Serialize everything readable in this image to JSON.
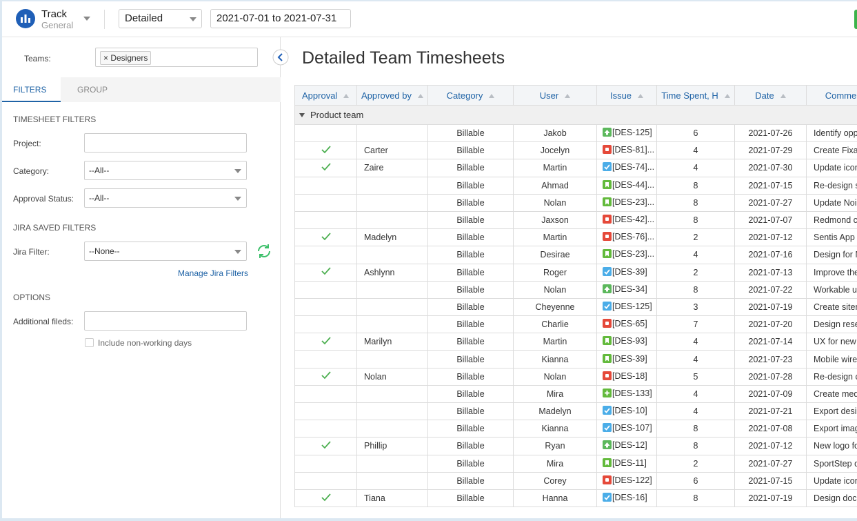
{
  "header": {
    "app_name": "Track",
    "app_sub": "General",
    "view": "Detailed",
    "date_range": "2021-07-01 to 2021-07-31"
  },
  "sidebar": {
    "teams_label": "Teams:",
    "team": "Designers",
    "tabs": [
      "FILTERS",
      "GROUP"
    ],
    "timesheet_title": "TIMESHEET FILTERS",
    "project_label": "Project:",
    "category_label": "Category:",
    "category_value": "--All--",
    "approval_label": "Approval Status:",
    "approval_value": "--All--",
    "jira_title": "JIRA SAVED FILTERS",
    "jira_label": "Jira Filter:",
    "jira_value": "--None--",
    "manage_link": "Manage Jira Filters",
    "options_title": "OPTIONS",
    "additional_label": "Additional fileds:",
    "include_label": "Include non-working days"
  },
  "table": {
    "title": "Detailed Team Timesheets",
    "columns": [
      "Approval",
      "Approved by",
      "Category",
      "User",
      "Issue",
      "Time Spent, H",
      "Date",
      "Comme"
    ],
    "group": "Product team",
    "rows": [
      {
        "approved": false,
        "category": "Billable",
        "user": "Jakob",
        "icon": "up",
        "issue": "[DES-125]",
        "time": 6,
        "date": "2021-07-26",
        "comment": "Identify opp"
      },
      {
        "approved": true,
        "approved_by": "Carter",
        "category": "Billable",
        "user": "Jocelyn",
        "icon": "bug",
        "issue": "[DES-81]...",
        "time": 4,
        "date": "2021-07-29",
        "comment": "Create Fixa v"
      },
      {
        "approved": true,
        "approved_by": "Zaire",
        "category": "Billable",
        "user": "Martin",
        "icon": "task",
        "issue": "[DES-74]...",
        "time": 4,
        "date": "2021-07-30",
        "comment": "Update icon"
      },
      {
        "approved": false,
        "category": "Billable",
        "user": "Ahmad",
        "icon": "story",
        "issue": "[DES-44]...",
        "time": 8,
        "date": "2021-07-15",
        "comment": "Re-design sc"
      },
      {
        "approved": false,
        "category": "Billable",
        "user": "Nolan",
        "icon": "story",
        "issue": "[DES-23]...",
        "time": 8,
        "date": "2021-07-27",
        "comment": "Update Noiz"
      },
      {
        "approved": false,
        "category": "Billable",
        "user": "Jaxson",
        "icon": "bug",
        "issue": "[DES-42]...",
        "time": 8,
        "date": "2021-07-07",
        "comment": "Redmond co"
      },
      {
        "approved": true,
        "approved_by": "Madelyn",
        "category": "Billable",
        "user": "Martin",
        "icon": "bug",
        "issue": "[DES-76]...",
        "time": 2,
        "date": "2021-07-12",
        "comment": "Sentis App d"
      },
      {
        "approved": false,
        "category": "Billable",
        "user": "Desirae",
        "icon": "story",
        "issue": "[DES-23]...",
        "time": 4,
        "date": "2021-07-16",
        "comment": "Design for N"
      },
      {
        "approved": true,
        "approved_by": "Ashlynn",
        "category": "Billable",
        "user": "Roger",
        "icon": "task",
        "issue": "[DES-39]",
        "time": 2,
        "date": "2021-07-13",
        "comment": "Improve the"
      },
      {
        "approved": false,
        "category": "Billable",
        "user": "Nolan",
        "icon": "up",
        "issue": "[DES-34]",
        "time": 8,
        "date": "2021-07-22",
        "comment": "Workable us"
      },
      {
        "approved": false,
        "category": "Billable",
        "user": "Cheyenne",
        "icon": "task",
        "issue": "[DES-125]",
        "time": 3,
        "date": "2021-07-19",
        "comment": "Create sitem"
      },
      {
        "approved": false,
        "category": "Billable",
        "user": "Charlie",
        "icon": "bug",
        "issue": "[DES-65]",
        "time": 7,
        "date": "2021-07-20",
        "comment": "Design reser"
      },
      {
        "approved": true,
        "approved_by": "Marilyn",
        "category": "Billable",
        "user": "Martin",
        "icon": "story",
        "issue": "[DES-93]",
        "time": 4,
        "date": "2021-07-14",
        "comment": "UX for new"
      },
      {
        "approved": false,
        "category": "Billable",
        "user": "Kianna",
        "icon": "story",
        "issue": "[DES-39]",
        "time": 4,
        "date": "2021-07-23",
        "comment": "Mobile wiref"
      },
      {
        "approved": true,
        "approved_by": "Nolan",
        "category": "Billable",
        "user": "Nolan",
        "icon": "bug",
        "issue": "[DES-18]",
        "time": 5,
        "date": "2021-07-28",
        "comment": "Re-design co"
      },
      {
        "approved": false,
        "category": "Billable",
        "user": "Mira",
        "icon": "plus",
        "issue": "[DES-133]",
        "time": 4,
        "date": "2021-07-09",
        "comment": "Create medi"
      },
      {
        "approved": false,
        "category": "Billable",
        "user": "Madelyn",
        "icon": "task",
        "issue": "[DES-10]",
        "time": 4,
        "date": "2021-07-21",
        "comment": "Export desig"
      },
      {
        "approved": false,
        "category": "Billable",
        "user": "Kianna",
        "icon": "task",
        "issue": "[DES-107]",
        "time": 8,
        "date": "2021-07-08",
        "comment": "Export imag"
      },
      {
        "approved": true,
        "approved_by": "Phillip",
        "category": "Billable",
        "user": "Ryan",
        "icon": "up",
        "issue": "[DES-12]",
        "time": 8,
        "date": "2021-07-12",
        "comment": "New logo fo"
      },
      {
        "approved": false,
        "category": "Billable",
        "user": "Mira",
        "icon": "story",
        "issue": "[DES-11]",
        "time": 2,
        "date": "2021-07-27",
        "comment": "SportStep de"
      },
      {
        "approved": false,
        "category": "Billable",
        "user": "Corey",
        "icon": "bug",
        "issue": "[DES-122]",
        "time": 6,
        "date": "2021-07-15",
        "comment": "Update icon"
      },
      {
        "approved": true,
        "approved_by": "Tiana",
        "category": "Billable",
        "user": "Hanna",
        "icon": "task",
        "issue": "[DES-16]",
        "time": 8,
        "date": "2021-07-19",
        "comment": "Design docu"
      }
    ]
  }
}
